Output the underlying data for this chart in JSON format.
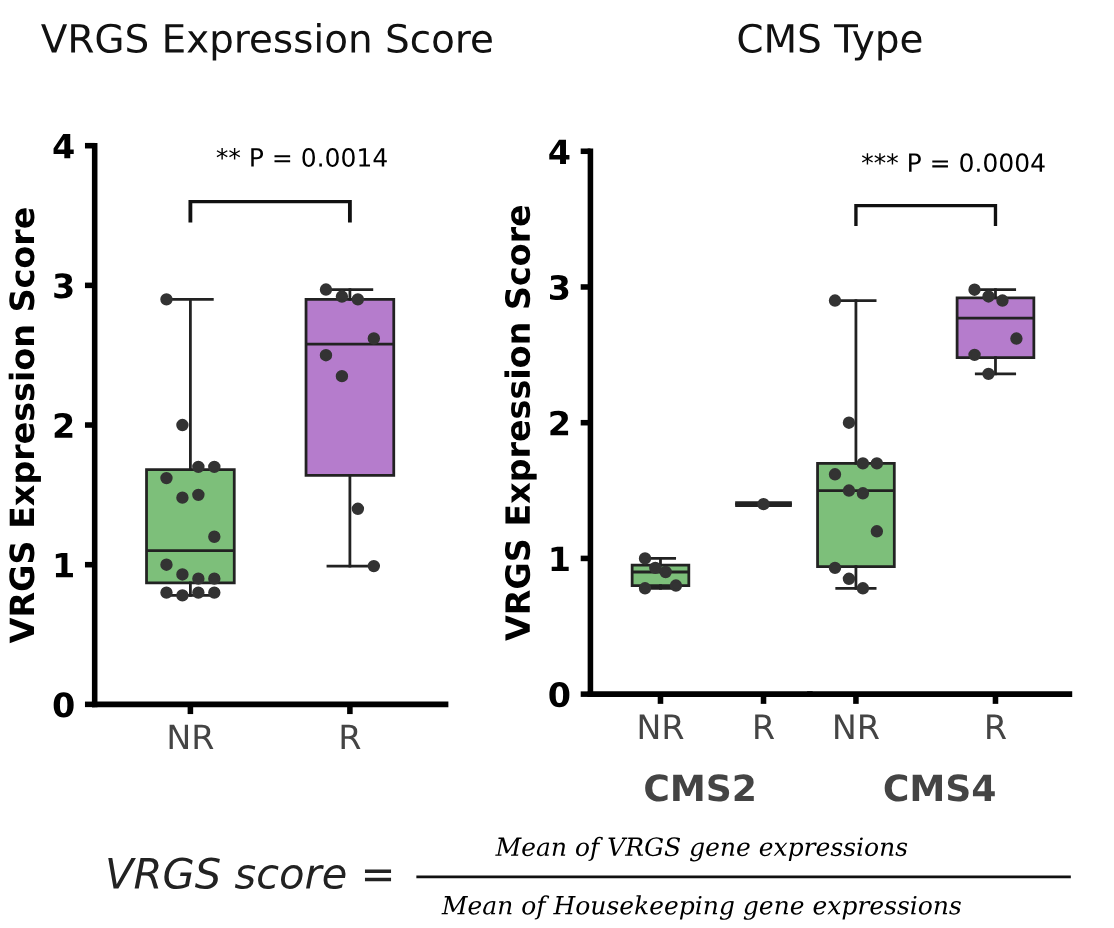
{
  "chart_data": [
    {
      "type": "box",
      "title": "VRGS Expression Score",
      "ylabel": "VRGS Expression Score",
      "categories": [
        "NR",
        "R"
      ],
      "colors": [
        "#7dbf7a",
        "#b57ccc"
      ],
      "boxes": [
        {
          "low": 0.78,
          "q1": 0.87,
          "median": 1.1,
          "q3": 1.68,
          "high": 2.9
        },
        {
          "low": 0.99,
          "q1": 1.64,
          "median": 2.58,
          "q3": 2.9,
          "high": 2.97
        }
      ],
      "series": [
        {
          "type": "scatter",
          "color": "#333333",
          "x": [
            "NR",
            "NR",
            "NR",
            "NR",
            "NR",
            "NR",
            "NR",
            "NR",
            "NR",
            "NR",
            "NR",
            "NR",
            "NR",
            "NR",
            "NR",
            "NR"
          ],
          "values": [
            2.9,
            2.0,
            1.7,
            1.7,
            1.62,
            1.48,
            1.5,
            1.2,
            1.0,
            0.93,
            0.9,
            0.9,
            0.8,
            0.78,
            0.8,
            0.8
          ]
        },
        {
          "type": "scatter",
          "color": "#333333",
          "x": [
            "R",
            "R",
            "R",
            "R",
            "R",
            "R",
            "R",
            "R"
          ],
          "values": [
            2.97,
            2.92,
            2.9,
            2.62,
            2.5,
            2.35,
            1.4,
            0.99
          ]
        }
      ],
      "ylim": [
        0,
        4
      ],
      "yticks": [
        0,
        1,
        2,
        3,
        4
      ],
      "annotations": [
        "** P = 0.0014"
      ]
    },
    {
      "type": "box",
      "title": "CMS Type",
      "ylabel": "VRGS Expression Score",
      "xlabel": "CMS2",
      "categories": [
        "NR",
        "R"
      ],
      "colors": [
        "#7dbf7a",
        "#222222"
      ],
      "boxes": [
        {
          "low": 0.78,
          "q1": 0.8,
          "median": 0.9,
          "q3": 0.95,
          "high": 1.0
        },
        {
          "low": 1.4,
          "q1": 1.4,
          "median": 1.4,
          "q3": 1.4,
          "high": 1.4
        }
      ],
      "series": [
        {
          "type": "scatter",
          "color": "#333333",
          "x": [
            "NR",
            "NR",
            "NR",
            "NR",
            "NR"
          ],
          "values": [
            1.0,
            0.93,
            0.9,
            0.8,
            0.78
          ]
        },
        {
          "type": "scatter",
          "color": "#333333",
          "x": [
            "R"
          ],
          "values": [
            1.4
          ]
        }
      ],
      "ylim": [
        0,
        4
      ],
      "yticks": [
        0,
        1,
        2,
        3,
        4
      ]
    },
    {
      "type": "box",
      "xlabel": "CMS4",
      "categories": [
        "NR",
        "R"
      ],
      "colors": [
        "#7dbf7a",
        "#b57ccc"
      ],
      "boxes": [
        {
          "low": 0.78,
          "q1": 0.94,
          "median": 1.5,
          "q3": 1.7,
          "high": 2.9
        },
        {
          "low": 2.36,
          "q1": 2.48,
          "median": 2.77,
          "q3": 2.92,
          "high": 2.98
        }
      ],
      "series": [
        {
          "type": "scatter",
          "color": "#333333",
          "x": [
            "NR",
            "NR",
            "NR",
            "NR",
            "NR",
            "NR",
            "NR",
            "NR",
            "NR",
            "NR",
            "NR"
          ],
          "values": [
            2.9,
            2.0,
            1.7,
            1.7,
            1.62,
            1.5,
            1.48,
            1.2,
            0.93,
            0.85,
            0.78
          ]
        },
        {
          "type": "scatter",
          "color": "#333333",
          "x": [
            "R",
            "R",
            "R",
            "R",
            "R",
            "R"
          ],
          "values": [
            2.98,
            2.93,
            2.9,
            2.62,
            2.5,
            2.36
          ]
        }
      ],
      "ylim": [
        0,
        4
      ],
      "yticks": [
        0,
        1,
        2,
        3,
        4
      ],
      "tick_labels": "x",
      "annotations": [
        "*** P = 0.0004",
        "VRGS score =",
        "Mean of VRGS gene expressions",
        "Mean of Housekeeping gene expressions"
      ]
    }
  ]
}
